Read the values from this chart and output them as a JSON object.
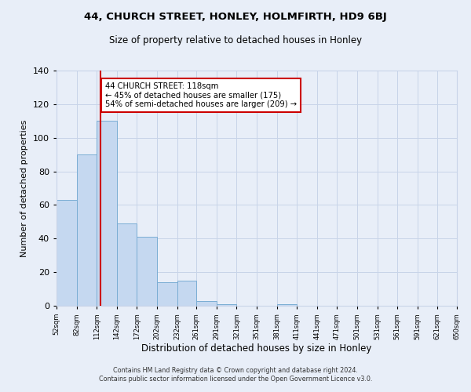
{
  "title": "44, CHURCH STREET, HONLEY, HOLMFIRTH, HD9 6BJ",
  "subtitle": "Size of property relative to detached houses in Honley",
  "xlabel": "Distribution of detached houses by size in Honley",
  "ylabel": "Number of detached properties",
  "bar_edges": [
    52,
    82,
    112,
    142,
    172,
    202,
    232,
    261,
    291,
    321,
    351,
    381,
    411,
    441,
    471,
    501,
    531,
    561,
    591,
    621,
    650
  ],
  "bar_heights": [
    63,
    90,
    110,
    49,
    41,
    14,
    15,
    3,
    1,
    0,
    0,
    1,
    0,
    0,
    0,
    0,
    0,
    0,
    0,
    0
  ],
  "bar_color": "#c5d8f0",
  "bar_edgecolor": "#7aadd4",
  "grid_color": "#c8d4e8",
  "bg_color": "#e8eef8",
  "vline_x": 118,
  "vline_color": "#cc0000",
  "annotation_text": "44 CHURCH STREET: 118sqm\n← 45% of detached houses are smaller (175)\n54% of semi-detached houses are larger (209) →",
  "annotation_box_edgecolor": "#cc0000",
  "ylim": [
    0,
    140
  ],
  "yticks": [
    0,
    20,
    40,
    60,
    80,
    100,
    120,
    140
  ],
  "xtick_labels": [
    "52sqm",
    "82sqm",
    "112sqm",
    "142sqm",
    "172sqm",
    "202sqm",
    "232sqm",
    "261sqm",
    "291sqm",
    "321sqm",
    "351sqm",
    "381sqm",
    "411sqm",
    "441sqm",
    "471sqm",
    "501sqm",
    "531sqm",
    "561sqm",
    "591sqm",
    "621sqm",
    "650sqm"
  ],
  "footer_line1": "Contains HM Land Registry data © Crown copyright and database right 2024.",
  "footer_line2": "Contains public sector information licensed under the Open Government Licence v3.0."
}
